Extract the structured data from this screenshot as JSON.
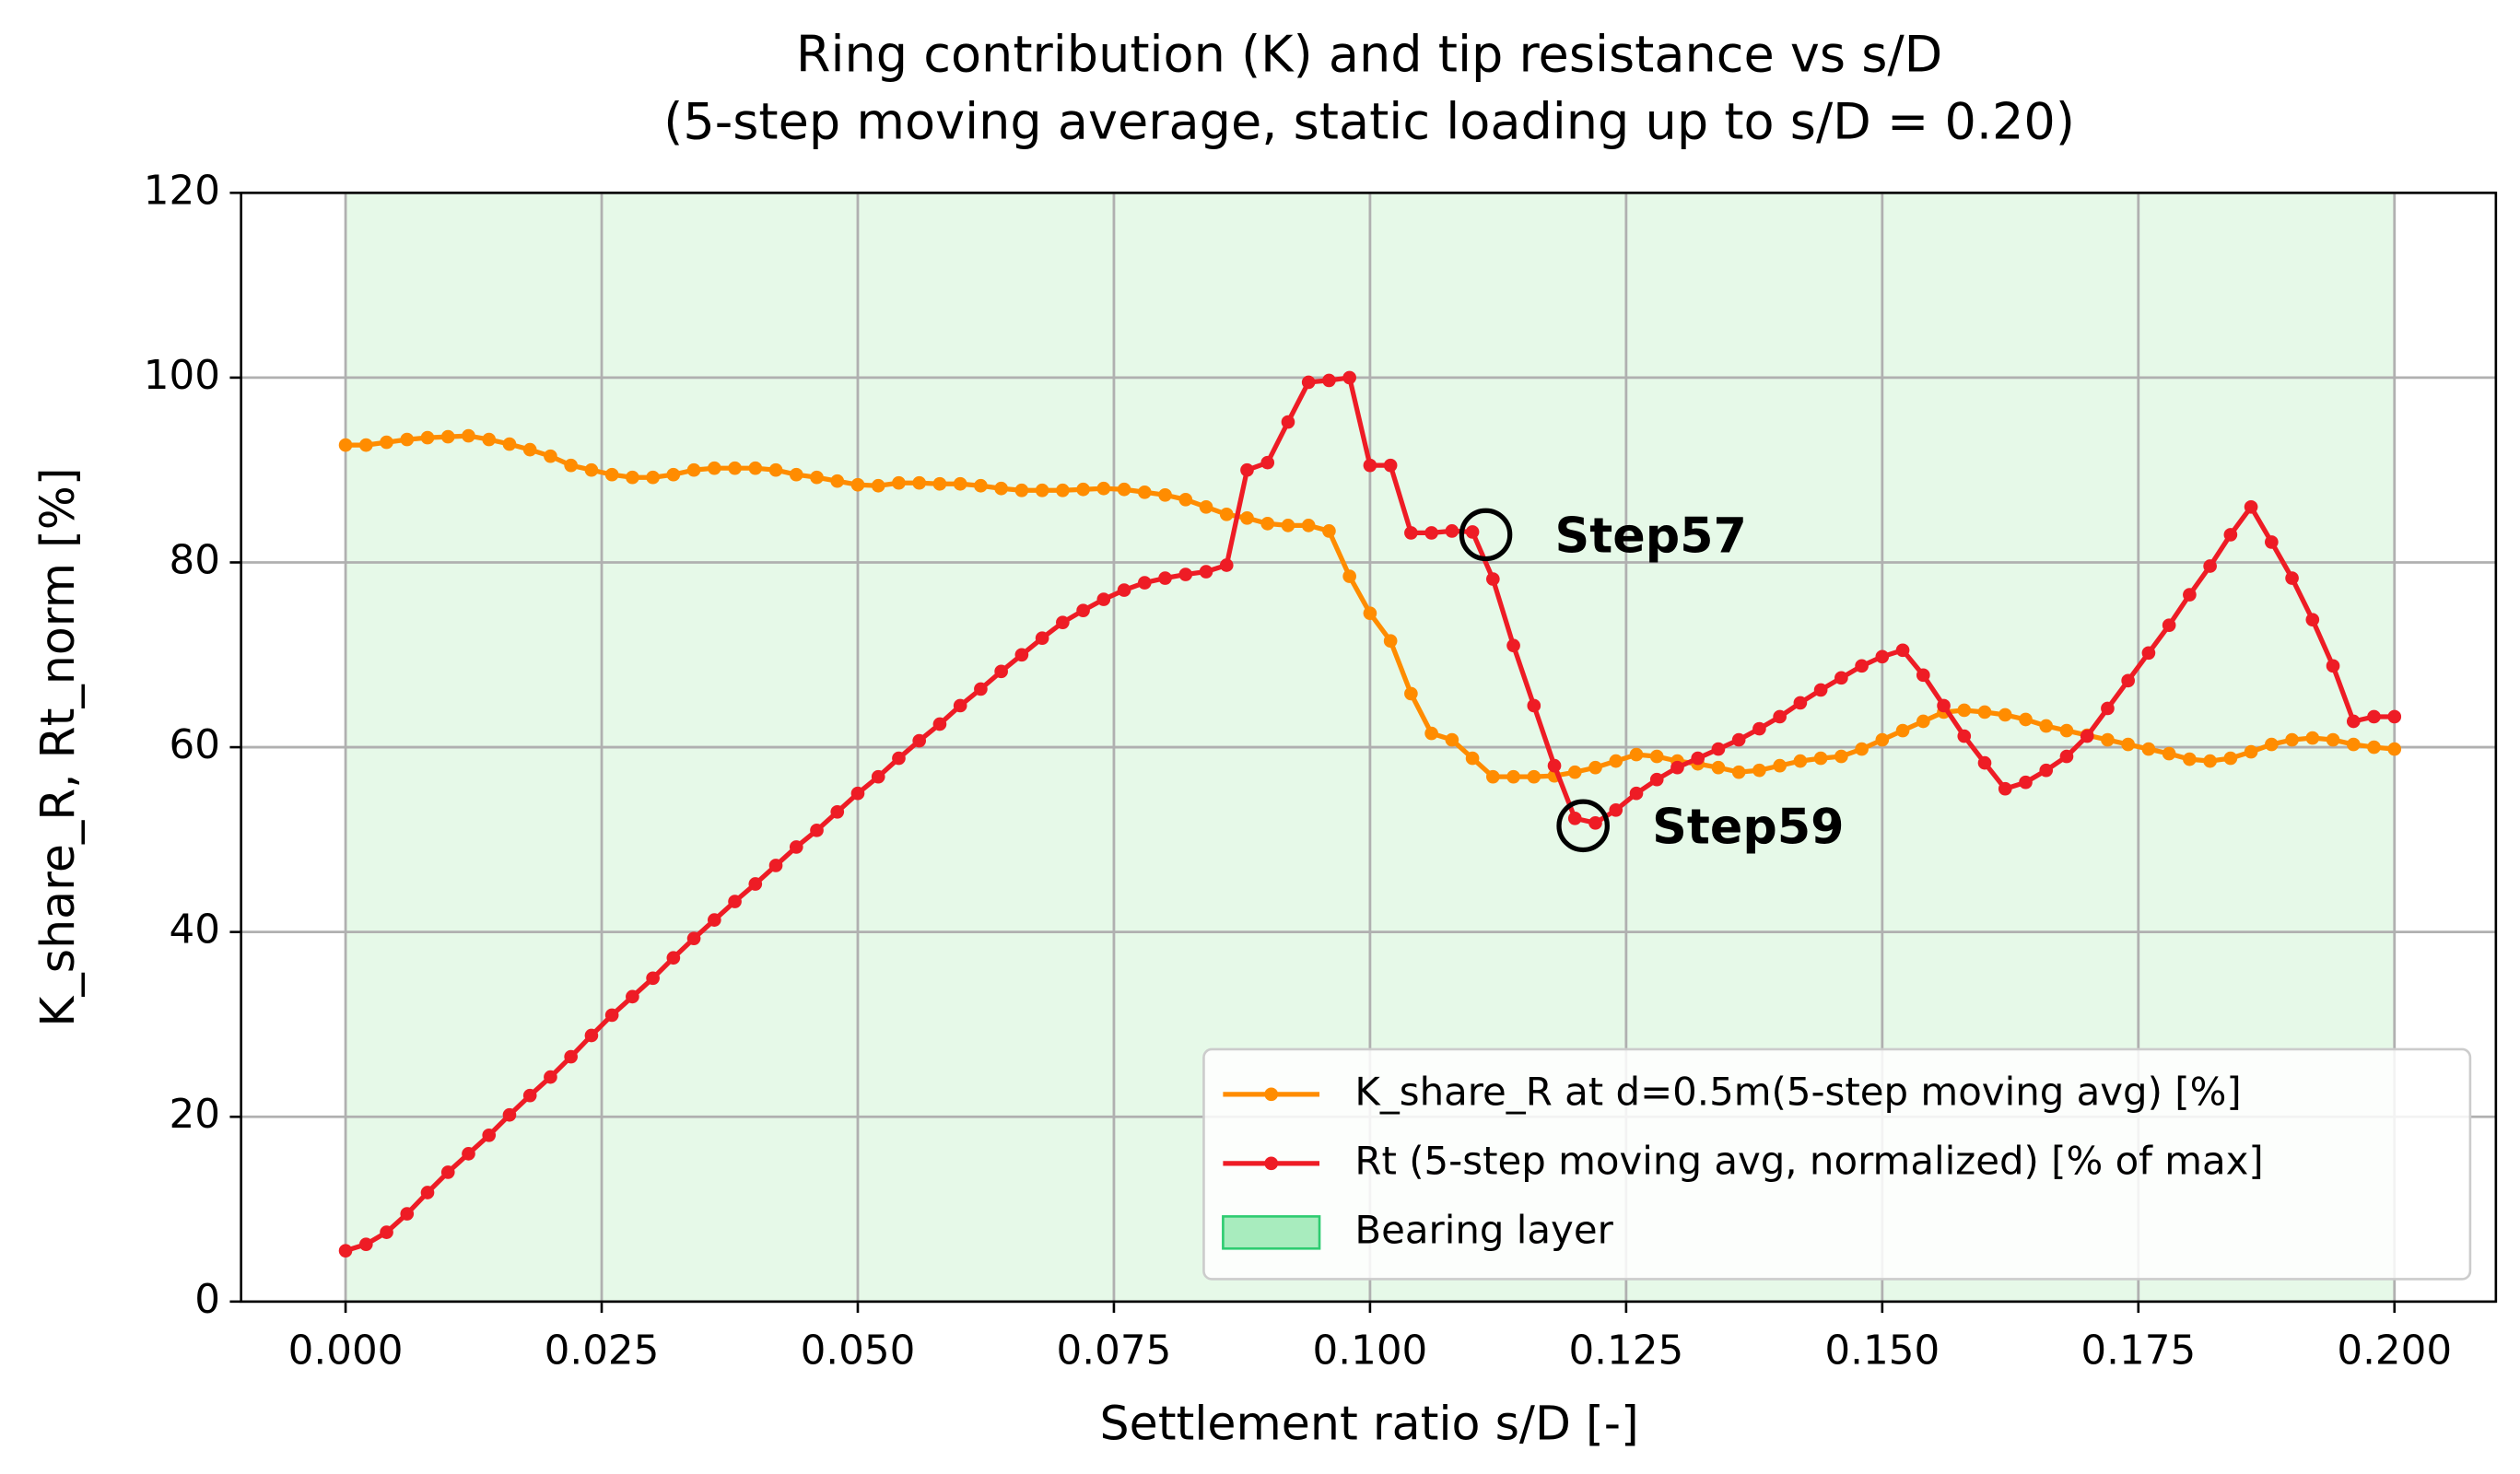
{
  "chart_data": {
    "type": "line",
    "title": "Ring contribution (K) and tip resistance vs s/D",
    "subtitle": "(5-step moving average, static loading up to s/D = 0.20)",
    "x_label": "Settlement ratio s/D [-]",
    "y_label": "K_share_R, Rt_norm [%]",
    "xlim": [
      -0.0102,
      0.2099
    ],
    "ylim": [
      0,
      120
    ],
    "xticks": [
      {
        "value": 0,
        "label": "0.000"
      },
      {
        "value": 0.025,
        "label": "0.025"
      },
      {
        "value": 0.05,
        "label": "0.050"
      },
      {
        "value": 0.075,
        "label": "0.075"
      },
      {
        "value": 0.1,
        "label": "0.100"
      },
      {
        "value": 0.125,
        "label": "0.125"
      },
      {
        "value": 0.15,
        "label": "0.150"
      },
      {
        "value": 0.175,
        "label": "0.175"
      },
      {
        "value": 0.2,
        "label": "0.200"
      }
    ],
    "yticks": [
      0,
      20,
      40,
      60,
      80,
      100,
      120
    ],
    "grid": true,
    "legend": "lower right",
    "x": [
      0,
      0.002,
      0.004,
      0.006,
      0.008,
      0.01,
      0.012,
      0.014,
      0.016,
      0.018,
      0.02,
      0.022,
      0.024,
      0.026,
      0.028,
      0.03,
      0.032,
      0.034,
      0.036,
      0.038,
      0.04,
      0.042,
      0.044,
      0.046,
      0.048,
      0.05,
      0.052,
      0.054,
      0.056,
      0.058,
      0.06,
      0.062,
      0.064,
      0.066,
      0.068,
      0.07,
      0.072,
      0.074,
      0.076,
      0.078,
      0.08,
      0.082,
      0.084,
      0.086,
      0.088,
      0.09,
      0.092,
      0.094,
      0.096,
      0.098,
      0.1,
      0.102,
      0.104,
      0.106,
      0.108,
      0.11,
      0.112,
      0.114,
      0.116,
      0.118,
      0.12,
      0.122,
      0.124,
      0.126,
      0.128,
      0.13,
      0.132,
      0.134,
      0.136,
      0.138,
      0.14,
      0.142,
      0.144,
      0.146,
      0.148,
      0.15,
      0.152,
      0.154,
      0.156,
      0.158,
      0.16,
      0.162,
      0.164,
      0.166,
      0.168,
      0.17,
      0.172,
      0.174,
      0.176,
      0.178,
      0.18,
      0.182,
      0.184,
      0.186,
      0.188,
      0.19,
      0.192,
      0.194,
      0.196,
      0.198,
      0.2
    ],
    "series": [
      {
        "name": "K_share_R at d=0.5m(5-step moving avg) [%]",
        "color": "#ff8c00",
        "values": [
          92.7,
          92.7,
          93,
          93.3,
          93.5,
          93.6,
          93.7,
          93.3,
          92.8,
          92.2,
          91.5,
          90.5,
          90,
          89.5,
          89.2,
          89.2,
          89.5,
          90,
          90.2,
          90.2,
          90.2,
          90,
          89.5,
          89.2,
          88.8,
          88.4,
          88.3,
          88.6,
          88.6,
          88.5,
          88.5,
          88.3,
          88,
          87.8,
          87.8,
          87.8,
          87.9,
          88,
          87.9,
          87.6,
          87.3,
          86.8,
          86,
          85.2,
          84.8,
          84.2,
          84,
          84,
          83.4,
          78.5,
          74.5,
          71.5,
          65.8,
          61.5,
          60.8,
          58.8,
          56.8,
          56.8,
          56.8,
          56.9,
          57.3,
          57.8,
          58.5,
          59.2,
          59,
          58.5,
          58.2,
          57.8,
          57.3,
          57.5,
          58,
          58.5,
          58.8,
          59,
          59.8,
          60.8,
          61.8,
          62.8,
          63.8,
          64,
          63.8,
          63.5,
          63,
          62.3,
          61.8,
          61.3,
          60.8,
          60.3,
          59.8,
          59.3,
          58.7,
          58.5,
          58.8,
          59.5,
          60.3,
          60.8,
          61,
          60.8,
          60.3,
          60,
          59.8
        ]
      },
      {
        "name": "Rt (5-step moving avg, normalized) [% of max]",
        "color": "#ee1c25",
        "values": [
          5.5,
          6.2,
          7.5,
          9.5,
          11.8,
          14,
          16,
          18,
          20.2,
          22.3,
          24.3,
          26.5,
          28.8,
          31,
          33,
          35,
          37.2,
          39.3,
          41.3,
          43.3,
          45.2,
          47.2,
          49.2,
          51,
          53,
          55,
          56.8,
          58.8,
          60.7,
          62.5,
          64.5,
          66.3,
          68.2,
          70,
          71.8,
          73.5,
          74.8,
          76,
          77,
          77.8,
          78.3,
          78.7,
          79,
          79.7,
          90,
          90.8,
          95.2,
          99.5,
          99.7,
          100,
          90.5,
          90.5,
          83.2,
          83.2,
          83.4,
          83.3,
          78.2,
          71,
          64.5,
          58,
          52.3,
          51.8,
          53.2,
          55,
          56.5,
          57.8,
          58.8,
          59.8,
          60.8,
          62,
          63.3,
          64.8,
          66.2,
          67.5,
          68.8,
          69.8,
          70.5,
          67.8,
          64.5,
          61.2,
          58.3,
          55.5,
          56.2,
          57.5,
          59,
          61.2,
          64.2,
          67.2,
          70.2,
          73.2,
          76.5,
          79.6,
          83,
          86,
          82.2,
          78.3,
          73.8,
          68.8,
          62.8,
          63.3,
          63.3
        ]
      }
    ],
    "spans": [
      {
        "name": "Bearing layer",
        "x0": 0,
        "x1": 0.2,
        "color": "#e6f9e8",
        "edge_color": "#2ecc71"
      }
    ],
    "annotations": [
      {
        "text": "Step57",
        "x": 0.1113,
        "y": 83
      },
      {
        "text": "Step59",
        "x": 0.1208,
        "y": 51.5
      }
    ]
  }
}
